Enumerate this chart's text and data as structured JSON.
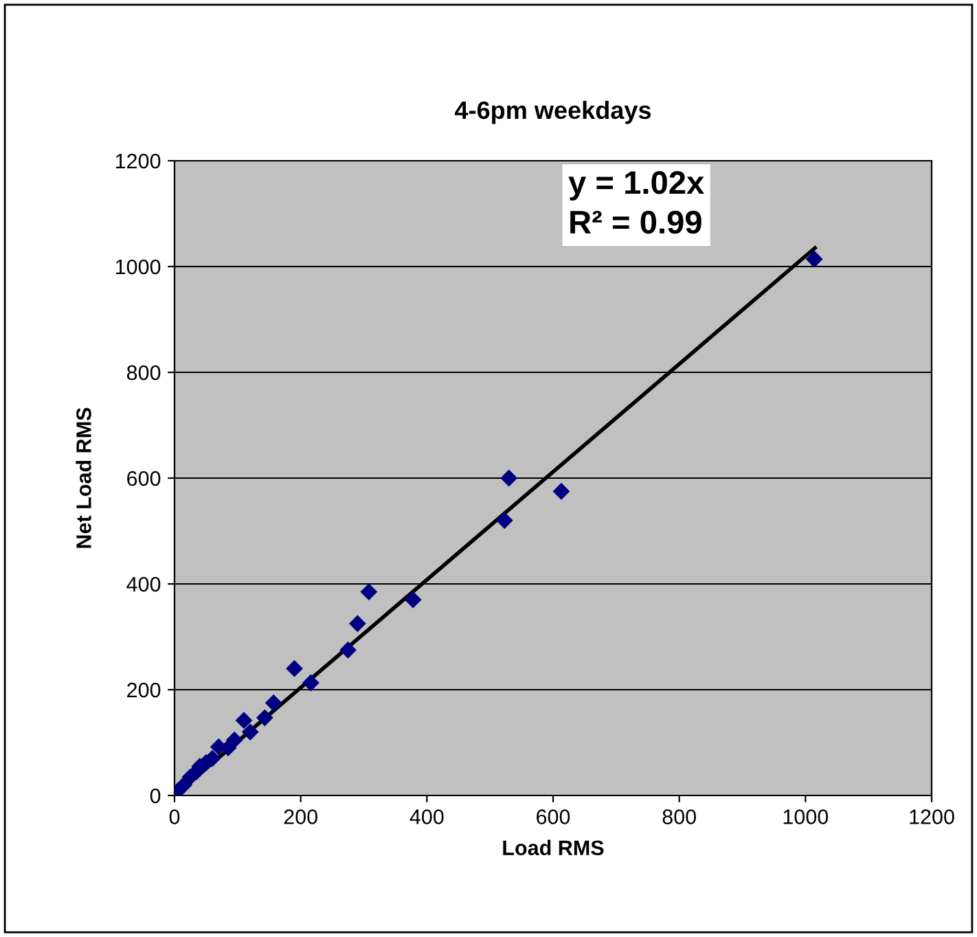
{
  "chart_data": {
    "type": "scatter",
    "title": "4-6pm weekdays",
    "xlabel": "Load RMS",
    "ylabel": "Net Load RMS",
    "annotations": [
      "y = 1.02x\nR² = 0.99"
    ],
    "xlim": [
      0,
      1200
    ],
    "xticks": [
      0,
      200,
      400,
      600,
      800,
      1000,
      1200
    ],
    "ylim": [
      0,
      1200
    ],
    "yticks": [
      0,
      200,
      400,
      600,
      800,
      1000,
      1200
    ],
    "grid": "y",
    "legend": false,
    "series": [
      {
        "marker": "diamond",
        "color": "#000080",
        "x": [
          1014,
          613,
          530,
          523,
          378,
          308,
          290,
          275,
          216,
          190,
          157,
          143,
          120,
          110,
          95,
          85,
          70,
          60,
          50,
          40,
          35,
          25,
          15,
          5
        ],
        "values": [
          1014,
          575,
          600,
          520,
          370,
          385,
          325,
          275,
          213,
          240,
          175,
          147,
          120,
          142,
          105,
          90,
          92,
          70,
          62,
          55,
          45,
          35,
          20,
          8
        ]
      },
      {
        "type": "line",
        "color": "#000000",
        "line_style": "solid",
        "x": [
          0,
          1015
        ],
        "values": [
          0,
          1035
        ]
      }
    ]
  }
}
